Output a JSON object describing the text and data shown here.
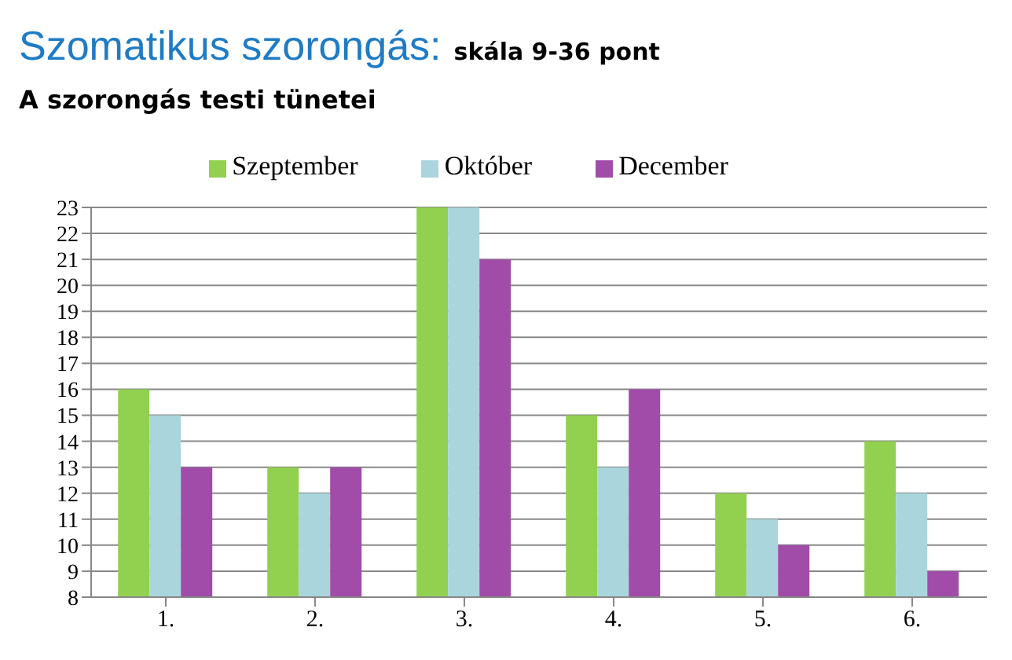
{
  "chart_data": {
    "type": "bar",
    "title": "Szomatikus szorongás:",
    "annotations": [
      "skála 9-36 pont"
    ],
    "subtitle": "A szorongás testi tünetei",
    "categories": [
      "1.",
      "2.",
      "3.",
      "4.",
      "5.",
      "6."
    ],
    "series": [
      {
        "name": "Szeptember",
        "color": "#92d050",
        "values": [
          16,
          13,
          23,
          15,
          12,
          14
        ]
      },
      {
        "name": "Október",
        "color": "#aad5dc",
        "values": [
          15,
          12,
          23,
          13,
          11,
          12
        ]
      },
      {
        "name": "December",
        "color": "#a04ca8",
        "values": [
          13,
          13,
          21,
          16,
          10,
          9
        ]
      }
    ],
    "ylim": [
      8,
      23
    ],
    "yticks": [
      8,
      9,
      10,
      11,
      12,
      13,
      14,
      15,
      16,
      17,
      18,
      19,
      20,
      21,
      22,
      23
    ],
    "grid": "y",
    "legend": "top"
  }
}
